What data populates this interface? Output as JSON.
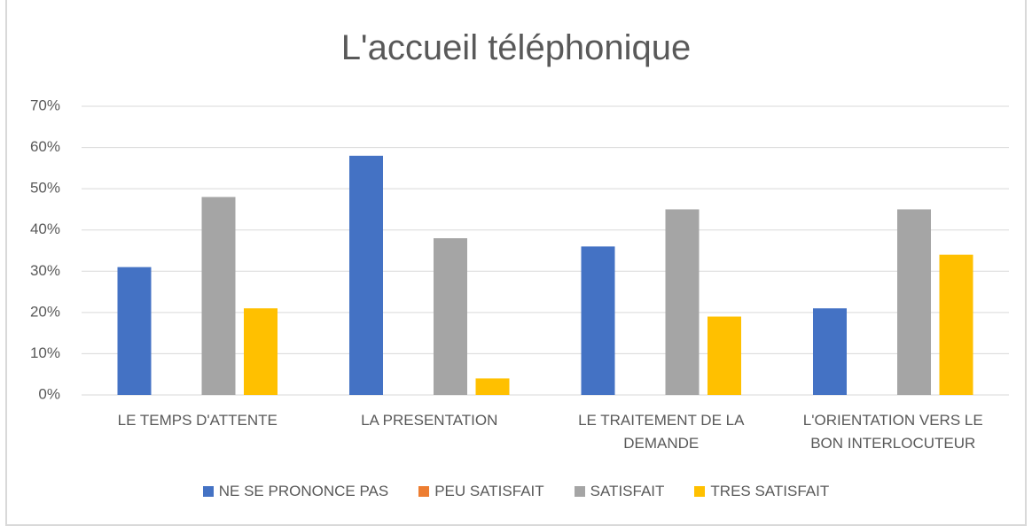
{
  "chart_data": {
    "type": "bar",
    "title": "L'accueil téléphonique",
    "categories": [
      "LE TEMPS D'ATTENTE",
      "LA PRESENTATION",
      "LE TRAITEMENT DE LA DEMANDE",
      "L'ORIENTATION VERS LE BON INTERLOCUTEUR"
    ],
    "series": [
      {
        "name": "NE SE PRONONCE PAS",
        "color": "#4472c4",
        "values": [
          31,
          58,
          36,
          21
        ]
      },
      {
        "name": "PEU SATISFAIT",
        "color": "#ed7d31",
        "values": [
          0,
          0,
          0,
          0
        ]
      },
      {
        "name": "SATISFAIT",
        "color": "#a5a5a5",
        "values": [
          48,
          38,
          45,
          45
        ]
      },
      {
        "name": "TRES SATISFAIT",
        "color": "#ffc000",
        "values": [
          21,
          4,
          19,
          34
        ]
      }
    ],
    "ylim": [
      0,
      70
    ],
    "yticks": [
      {
        "value": 0,
        "label": "0%"
      },
      {
        "value": 10,
        "label": "10%"
      },
      {
        "value": 20,
        "label": "20%"
      },
      {
        "value": 30,
        "label": "30%"
      },
      {
        "value": 40,
        "label": "40%"
      },
      {
        "value": 50,
        "label": "50%"
      },
      {
        "value": 60,
        "label": "60%"
      },
      {
        "value": 70,
        "label": "70%"
      }
    ],
    "grid": true,
    "legend": "bottom"
  }
}
